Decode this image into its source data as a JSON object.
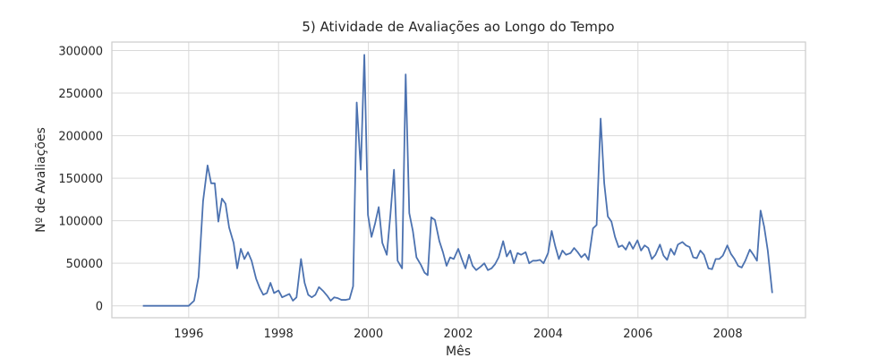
{
  "chart_data": {
    "type": "line",
    "title": "5) Atividade de Avaliações ao Longo do Tempo",
    "x_label": "Mês",
    "y_label": "Nº de Avaliações",
    "color": "#4c72b0",
    "grid": true,
    "xlim": [
      1994.29,
      2009.73
    ],
    "ylim": [
      -14000,
      310000
    ],
    "xticks": [
      1996,
      1998,
      2000,
      2002,
      2004,
      2006,
      2008
    ],
    "yticks": [
      0,
      50000,
      100000,
      150000,
      200000,
      250000,
      300000
    ],
    "x": [
      1994.98,
      1996.0,
      1996.12,
      1996.22,
      1996.32,
      1996.42,
      1996.5,
      1996.58,
      1996.66,
      1996.74,
      1996.82,
      1996.9,
      1997.0,
      1997.08,
      1997.16,
      1997.24,
      1997.32,
      1997.4,
      1997.5,
      1997.58,
      1997.66,
      1997.74,
      1997.82,
      1997.9,
      1998.0,
      1998.08,
      1998.16,
      1998.24,
      1998.32,
      1998.4,
      1998.5,
      1998.58,
      1998.66,
      1998.74,
      1998.82,
      1998.9,
      1999.0,
      1999.08,
      1999.16,
      1999.24,
      1999.32,
      1999.4,
      1999.5,
      1999.58,
      1999.66,
      1999.74,
      1999.83,
      1999.91,
      1999.99,
      2000.07,
      2000.15,
      2000.23,
      2000.31,
      2000.41,
      2000.49,
      2000.57,
      2000.65,
      2000.75,
      2000.83,
      2000.91,
      2000.99,
      2001.07,
      2001.17,
      2001.25,
      2001.32,
      2001.4,
      2001.48,
      2001.58,
      2001.66,
      2001.74,
      2001.82,
      2001.9,
      2002.0,
      2002.08,
      2002.16,
      2002.24,
      2002.32,
      2002.4,
      2002.5,
      2002.58,
      2002.66,
      2002.74,
      2002.82,
      2002.9,
      2003.0,
      2003.08,
      2003.16,
      2003.24,
      2003.32,
      2003.4,
      2003.5,
      2003.58,
      2003.66,
      2003.74,
      2003.82,
      2003.9,
      2004.0,
      2004.08,
      2004.16,
      2004.24,
      2004.32,
      2004.4,
      2004.5,
      2004.58,
      2004.66,
      2004.74,
      2004.82,
      2004.9,
      2005.0,
      2005.08,
      2005.17,
      2005.25,
      2005.33,
      2005.41,
      2005.49,
      2005.57,
      2005.65,
      2005.73,
      2005.81,
      2005.89,
      2005.99,
      2006.07,
      2006.15,
      2006.23,
      2006.31,
      2006.39,
      2006.49,
      2006.57,
      2006.65,
      2006.73,
      2006.81,
      2006.89,
      2006.99,
      2007.07,
      2007.15,
      2007.23,
      2007.31,
      2007.39,
      2007.47,
      2007.57,
      2007.65,
      2007.73,
      2007.81,
      2007.89,
      2007.99,
      2008.07,
      2008.15,
      2008.23,
      2008.31,
      2008.39,
      2008.49,
      2008.57,
      2008.65,
      2008.73,
      2008.81,
      2008.89,
      2008.99
    ],
    "values": [
      0,
      0,
      6000,
      34000,
      123000,
      165000,
      144000,
      144000,
      99000,
      126000,
      120000,
      92000,
      74000,
      44000,
      67000,
      55000,
      63000,
      53000,
      32000,
      21000,
      13000,
      15000,
      27000,
      15000,
      18000,
      10000,
      12000,
      14000,
      6000,
      10000,
      55000,
      27000,
      13000,
      10000,
      13000,
      22000,
      17000,
      12000,
      6000,
      10000,
      9000,
      7000,
      7000,
      8000,
      23000,
      239000,
      160000,
      295000,
      107000,
      81000,
      97000,
      116000,
      74000,
      60000,
      107000,
      160000,
      53000,
      44000,
      272000,
      109000,
      88000,
      57000,
      48000,
      39000,
      36000,
      104000,
      101000,
      76000,
      63000,
      47000,
      57000,
      55000,
      67000,
      55000,
      44000,
      60000,
      47000,
      42000,
      46000,
      50000,
      42000,
      44000,
      49000,
      57000,
      76000,
      58000,
      65000,
      50000,
      62000,
      60000,
      63000,
      50000,
      53000,
      53000,
      54000,
      50000,
      62000,
      88000,
      70000,
      55000,
      65000,
      60000,
      62000,
      68000,
      63000,
      57000,
      61000,
      54000,
      91000,
      95000,
      220000,
      144000,
      105000,
      99000,
      81000,
      69000,
      71000,
      66000,
      75000,
      67000,
      77000,
      65000,
      71000,
      68000,
      55000,
      60000,
      72000,
      59000,
      54000,
      67000,
      60000,
      72000,
      75000,
      71000,
      69000,
      57000,
      56000,
      65000,
      60000,
      44000,
      43000,
      55000,
      55000,
      59000,
      71000,
      61000,
      55000,
      47000,
      45000,
      53000,
      66000,
      60000,
      53000,
      112000,
      93000,
      65000,
      15000
    ]
  }
}
